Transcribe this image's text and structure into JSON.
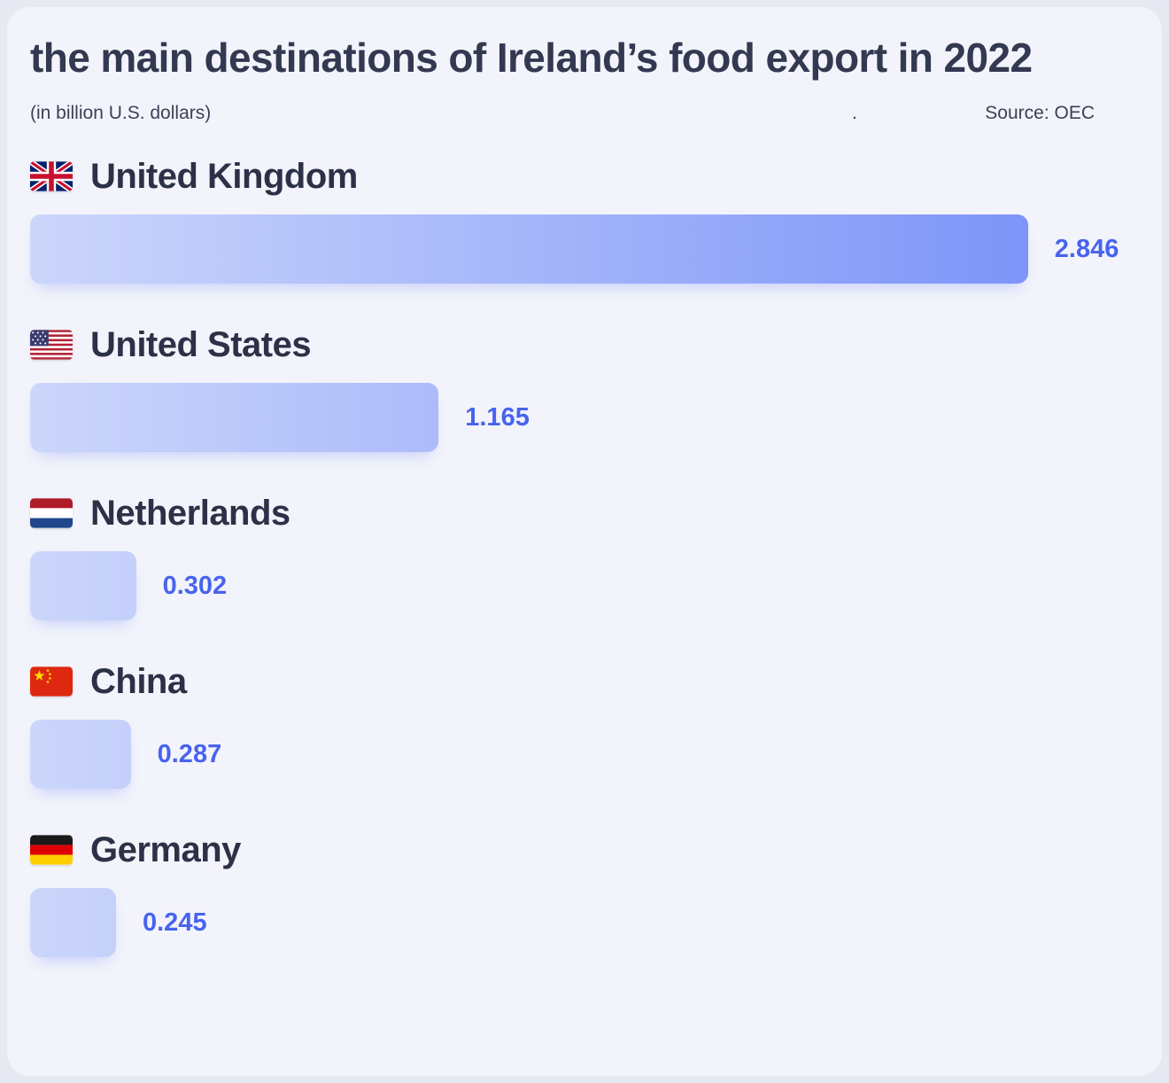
{
  "header": {
    "title": "the main destinations of Ireland’s food export in 2022",
    "subtitle": "(in billion U.S. dollars)",
    "separator_dot": ".",
    "source": "Source: OEC"
  },
  "colors": {
    "page_background": "#e7e9f2",
    "card_background": "#f3f4fb",
    "title_text": "#333950",
    "country_text": "#2c3147",
    "value_text": "#4763ef",
    "bar_gradient_start": "#ccd6fb",
    "bar_gradient_end": "#7d95f8"
  },
  "chart_data": {
    "type": "bar",
    "orientation": "horizontal",
    "title": "the main destinations of Ireland’s food export in 2022",
    "unit": "billion U.S. dollars",
    "source": "OEC",
    "categories": [
      "United Kingdom",
      "United States",
      "Netherlands",
      "China",
      "Germany"
    ],
    "values": [
      2.846,
      1.165,
      0.302,
      0.287,
      0.245
    ],
    "value_labels": [
      "2.846",
      "1.165",
      "0.302",
      "0.287",
      "0.245"
    ],
    "flags": [
      "united-kingdom",
      "united-states",
      "netherlands",
      "china",
      "germany"
    ],
    "xlim": [
      0,
      2.846
    ],
    "grid": false,
    "legend": false
  }
}
